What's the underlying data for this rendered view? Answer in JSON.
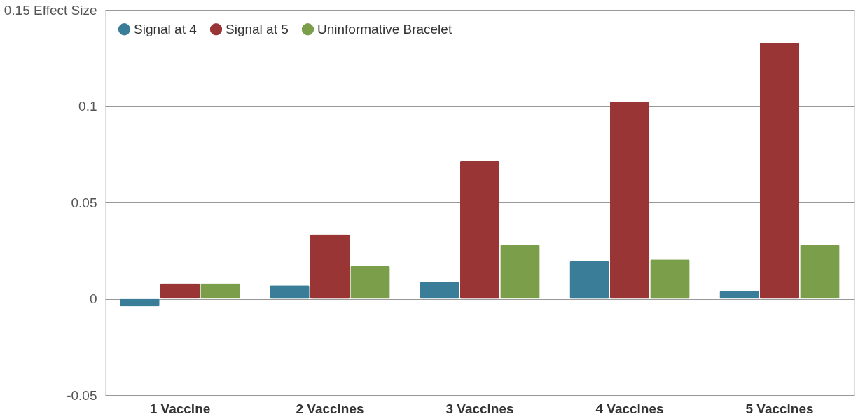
{
  "chart_data": {
    "type": "bar",
    "categories": [
      "1 Vaccine",
      "2 Vaccines",
      "3 Vaccines",
      "4 Vaccines",
      "5 Vaccines"
    ],
    "series": [
      {
        "name": "Signal at 4",
        "color": "#3a7d98",
        "values": [
          -0.004,
          0.007,
          0.009,
          0.0195,
          0.004
        ]
      },
      {
        "name": "Signal at 5",
        "color": "#9a3535",
        "values": [
          0.008,
          0.0335,
          0.0715,
          0.1025,
          0.133
        ]
      },
      {
        "name": "Uninformative Bracelet",
        "color": "#7a9e4a",
        "values": [
          0.008,
          0.017,
          0.028,
          0.0205,
          0.028
        ]
      }
    ],
    "ylim": [
      -0.05,
      0.15
    ],
    "yticks": [
      -0.05,
      0,
      0.05,
      0.1,
      {
        "value": 0.15,
        "label": "0.15 Effect Size"
      }
    ],
    "grid": "y",
    "legend": "top left"
  }
}
